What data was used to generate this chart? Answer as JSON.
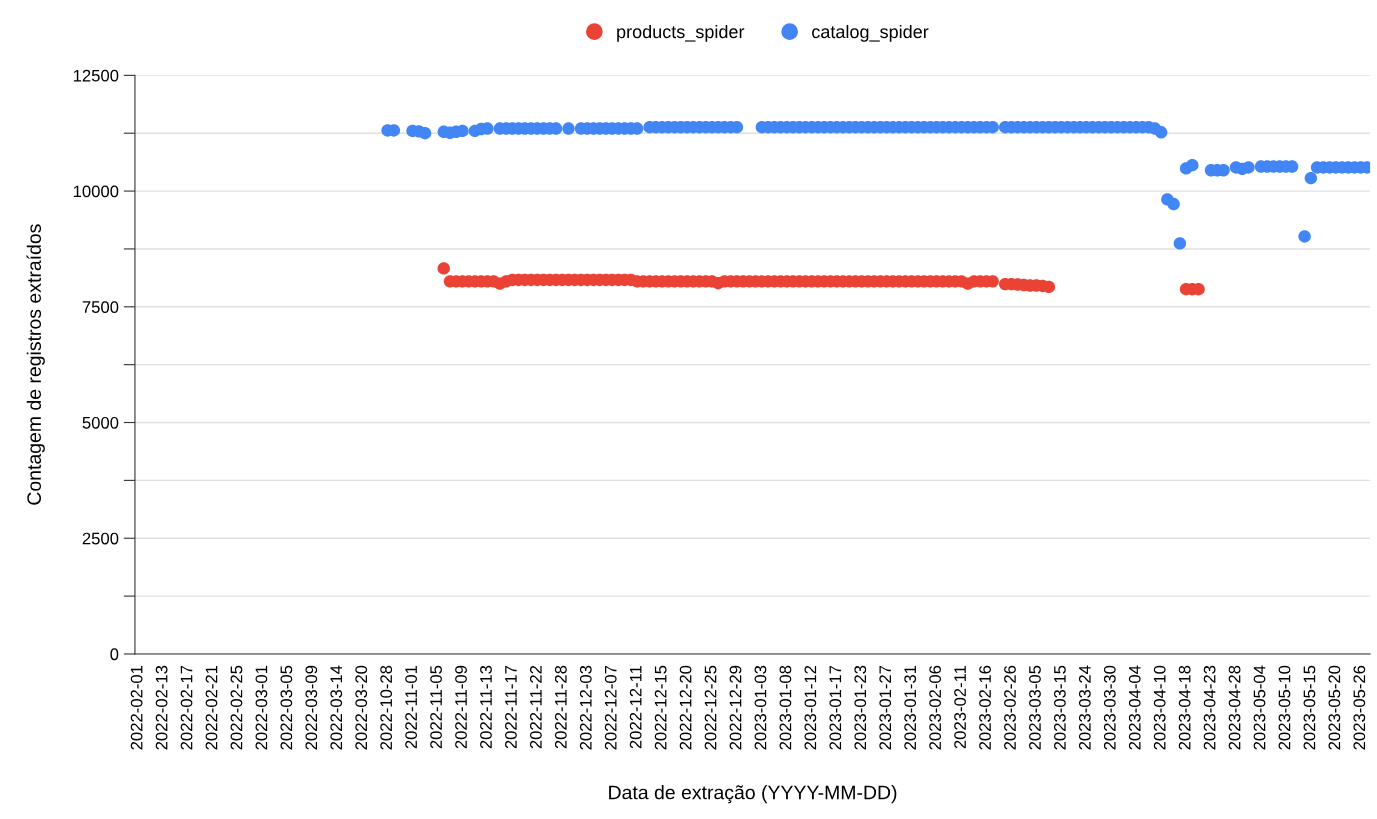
{
  "chart_data": {
    "type": "scatter",
    "xlabel": "Data de extração (YYYY-MM-DD)",
    "ylabel": "Contagem de registros extraídos",
    "categories": [
      "2022-02-01",
      null,
      null,
      null,
      "2022-02-13",
      null,
      null,
      null,
      "2022-02-17",
      null,
      null,
      null,
      "2022-02-21",
      null,
      null,
      null,
      "2022-02-25",
      null,
      null,
      null,
      "2022-03-01",
      null,
      null,
      null,
      "2022-03-05",
      null,
      null,
      null,
      "2022-03-09",
      null,
      null,
      null,
      "2022-03-14",
      null,
      null,
      null,
      "2022-03-20",
      null,
      null,
      null,
      "2022-10-28",
      null,
      null,
      null,
      "2022-11-01",
      null,
      null,
      null,
      "2022-11-05",
      null,
      null,
      null,
      "2022-11-09",
      null,
      null,
      null,
      "2022-11-13",
      null,
      null,
      null,
      "2022-11-17",
      null,
      null,
      null,
      "2022-11-22",
      null,
      null,
      null,
      "2022-11-28",
      null,
      null,
      null,
      "2022-12-03",
      null,
      null,
      null,
      "2022-12-07",
      null,
      null,
      null,
      "2022-12-11",
      null,
      null,
      null,
      "2022-12-15",
      null,
      null,
      null,
      "2022-12-20",
      null,
      null,
      null,
      "2022-12-25",
      null,
      null,
      null,
      "2022-12-29",
      null,
      null,
      null,
      "2023-01-03",
      null,
      null,
      null,
      "2023-01-08",
      null,
      null,
      null,
      "2023-01-12",
      null,
      null,
      null,
      "2023-01-17",
      null,
      null,
      null,
      "2023-01-23",
      null,
      null,
      null,
      "2023-01-27",
      null,
      null,
      null,
      "2023-01-31",
      null,
      null,
      null,
      "2023-02-06",
      null,
      null,
      null,
      "2023-02-11",
      null,
      null,
      null,
      "2023-02-16",
      null,
      null,
      null,
      "2023-02-26",
      null,
      null,
      null,
      "2023-03-05",
      null,
      null,
      null,
      "2023-03-15",
      null,
      null,
      null,
      "2023-03-24",
      null,
      null,
      null,
      "2023-03-30",
      null,
      null,
      null,
      "2023-04-04",
      null,
      null,
      null,
      "2023-04-10",
      null,
      null,
      null,
      "2023-04-18",
      null,
      null,
      null,
      "2023-04-23",
      null,
      null,
      null,
      "2023-04-28",
      null,
      null,
      null,
      "2023-05-04",
      null,
      null,
      null,
      "2023-05-10",
      null,
      null,
      null,
      "2023-05-15",
      null,
      null,
      null,
      "2023-05-20",
      null,
      null,
      null,
      "2023-05-26",
      null
    ],
    "series": [
      {
        "name": "products_spider",
        "color": "#ea4335",
        "values": [
          null,
          null,
          null,
          null,
          null,
          null,
          null,
          null,
          null,
          null,
          null,
          null,
          null,
          null,
          null,
          null,
          null,
          null,
          null,
          null,
          null,
          null,
          null,
          null,
          null,
          null,
          null,
          null,
          null,
          null,
          null,
          null,
          null,
          null,
          null,
          null,
          null,
          null,
          null,
          null,
          null,
          null,
          null,
          null,
          null,
          null,
          null,
          null,
          null,
          8330,
          8050,
          8050,
          8050,
          8050,
          8050,
          8050,
          8050,
          8050,
          8000,
          8050,
          8080,
          8080,
          8080,
          8080,
          8080,
          8080,
          8080,
          8080,
          8080,
          8080,
          8080,
          8080,
          8080,
          8080,
          8080,
          8080,
          8080,
          8080,
          8080,
          8080,
          8050,
          8050,
          8050,
          8050,
          8050,
          8050,
          8050,
          8050,
          8050,
          8050,
          8050,
          8050,
          8050,
          8010,
          8050,
          8050,
          8050,
          8050,
          8050,
          8050,
          8050,
          8050,
          8050,
          8050,
          8050,
          8050,
          8050,
          8050,
          8050,
          8050,
          8050,
          8050,
          8050,
          8050,
          8050,
          8050,
          8050,
          8050,
          8050,
          8050,
          8050,
          8050,
          8050,
          8050,
          8050,
          8050,
          8050,
          8050,
          8050,
          8050,
          8050,
          8050,
          8050,
          8000,
          8050,
          8050,
          8050,
          8050,
          null,
          7990,
          7990,
          7980,
          7970,
          7960,
          7960,
          7950,
          7930,
          null,
          null,
          null,
          null,
          null,
          null,
          null,
          null,
          null,
          null,
          null,
          null,
          null,
          null,
          null,
          null,
          null,
          null,
          null,
          null,
          null,
          7880,
          7880,
          7880,
          null,
          null,
          null,
          null,
          null,
          null,
          null,
          null,
          null,
          null,
          null,
          null,
          null,
          null,
          null,
          null,
          null,
          null,
          null,
          null,
          null,
          null,
          null,
          null,
          null,
          null,
          null
        ]
      },
      {
        "name": "catalog_spider",
        "color": "#4285f4",
        "values": [
          null,
          null,
          null,
          null,
          null,
          null,
          null,
          null,
          null,
          null,
          null,
          null,
          null,
          null,
          null,
          null,
          null,
          null,
          null,
          null,
          null,
          null,
          null,
          null,
          null,
          null,
          null,
          null,
          null,
          null,
          null,
          null,
          null,
          null,
          null,
          null,
          null,
          null,
          null,
          null,
          11310,
          11310,
          null,
          null,
          11300,
          11290,
          11250,
          null,
          null,
          11280,
          11260,
          11280,
          11300,
          null,
          11300,
          11340,
          11350,
          null,
          11350,
          11350,
          11350,
          11350,
          11350,
          11350,
          11350,
          11350,
          11350,
          11350,
          null,
          11350,
          null,
          11350,
          11350,
          11350,
          11350,
          11350,
          11350,
          11350,
          11350,
          11350,
          11350,
          null,
          11380,
          11380,
          11380,
          11380,
          11380,
          11380,
          11380,
          11380,
          11380,
          11380,
          11380,
          11380,
          11380,
          11380,
          11380,
          null,
          null,
          null,
          11380,
          11380,
          11380,
          11380,
          11380,
          11380,
          11380,
          11380,
          11380,
          11380,
          11380,
          11380,
          11380,
          11380,
          11380,
          11380,
          11380,
          11380,
          11380,
          11380,
          11380,
          11380,
          11380,
          11380,
          11380,
          11380,
          11380,
          11380,
          11380,
          11380,
          11380,
          11380,
          11380,
          11380,
          11380,
          11380,
          11380,
          11380,
          null,
          11380,
          11380,
          11380,
          11380,
          11380,
          11380,
          11380,
          11380,
          11380,
          11380,
          11380,
          11380,
          11380,
          11380,
          11380,
          11380,
          11380,
          11380,
          11380,
          11380,
          11380,
          11380,
          11380,
          11380,
          11350,
          11270,
          9820,
          9720,
          8870,
          10490,
          10560,
          null,
          null,
          10450,
          10450,
          10450,
          null,
          10510,
          10480,
          10510,
          null,
          10530,
          10530,
          10530,
          10530,
          10530,
          10530,
          null,
          9020,
          10280,
          10510,
          10510,
          10510,
          10510,
          10510,
          10510,
          10510,
          10510,
          10510
        ]
      }
    ],
    "ylim": [
      0,
      12500
    ],
    "yticks": [
      0,
      {
        "value": 1250,
        "label": null
      },
      2500,
      {
        "value": 3750,
        "label": null
      },
      5000,
      {
        "value": 6250,
        "label": null
      },
      7500,
      {
        "value": 8750,
        "label": null
      },
      10000,
      {
        "value": 11250,
        "label": null
      },
      12500
    ],
    "grid": "y",
    "legend": "top",
    "marker": "circle"
  }
}
